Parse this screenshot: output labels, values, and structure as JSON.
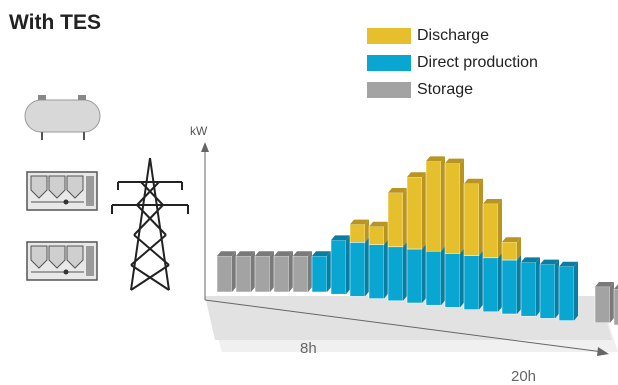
{
  "title": "With TES",
  "legend": [
    {
      "label": "Discharge",
      "color": "#e6c02c",
      "key": "discharge"
    },
    {
      "label": "Direct production",
      "color": "#0aa6d2",
      "key": "direct"
    },
    {
      "label": "Storage",
      "color": "#9d9d9d",
      "key": "storage"
    }
  ],
  "axis": {
    "y_label": "kW",
    "x_ticks": [
      "8h",
      "20h"
    ]
  },
  "icons": [
    "storage-tank-icon",
    "chiller-unit-icon",
    "chiller-unit-icon",
    "power-pylon-icon"
  ],
  "colors": {
    "discharge": "#e6c02c",
    "discharge_dark": "#b89420",
    "direct": "#0aa6d2",
    "direct_dark": "#0a7ea0",
    "storage": "#a3a3a3",
    "storage_dark": "#7a7a7a"
  },
  "chart_data": {
    "type": "bar",
    "stacked": true,
    "series": [
      {
        "name": "Storage",
        "values": [
          2,
          2,
          2,
          2,
          2,
          0,
          0,
          0,
          0,
          0,
          0,
          0,
          0,
          0,
          0,
          0,
          0,
          0,
          0,
          2,
          2
        ]
      },
      {
        "name": "Direct production",
        "values": [
          0,
          0,
          0,
          0,
          0,
          2,
          3,
          3,
          3,
          3,
          3,
          3,
          3,
          3,
          3,
          3,
          3,
          3,
          3,
          0,
          0
        ]
      },
      {
        "name": "Discharge",
        "values": [
          0,
          0,
          0,
          0,
          0,
          0,
          0,
          1,
          1,
          3,
          4,
          5,
          5,
          4,
          3,
          1,
          0,
          0,
          0,
          0,
          0
        ]
      }
    ]
  }
}
